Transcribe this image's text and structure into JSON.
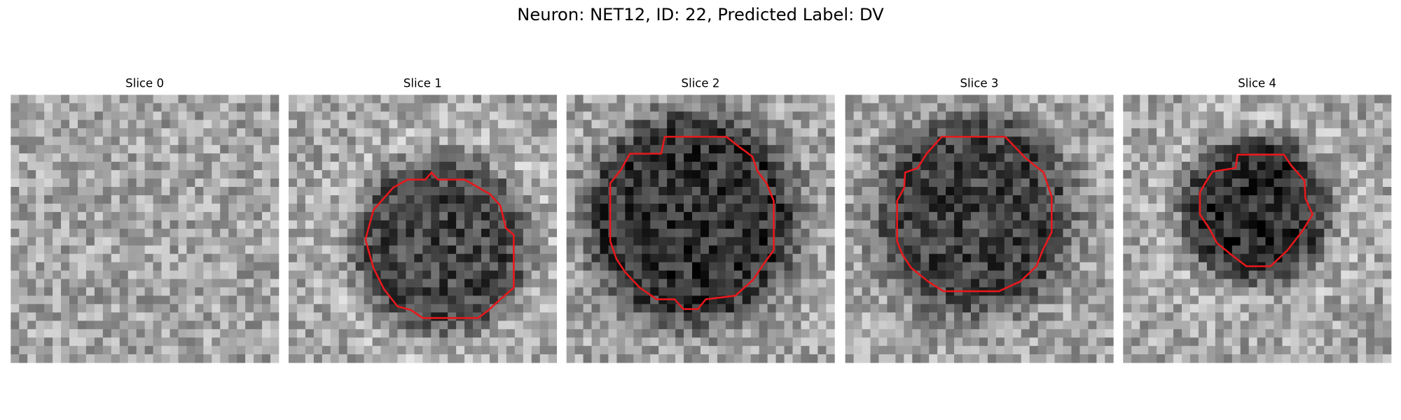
{
  "title": "Neuron: NET12, ID: 22, Predicted Label: DV",
  "panels": [
    {
      "label": "Slice 0"
    },
    {
      "label": "Slice 1"
    },
    {
      "label": "Slice 2"
    },
    {
      "label": "Slice 3"
    },
    {
      "label": "Slice 4"
    }
  ]
}
